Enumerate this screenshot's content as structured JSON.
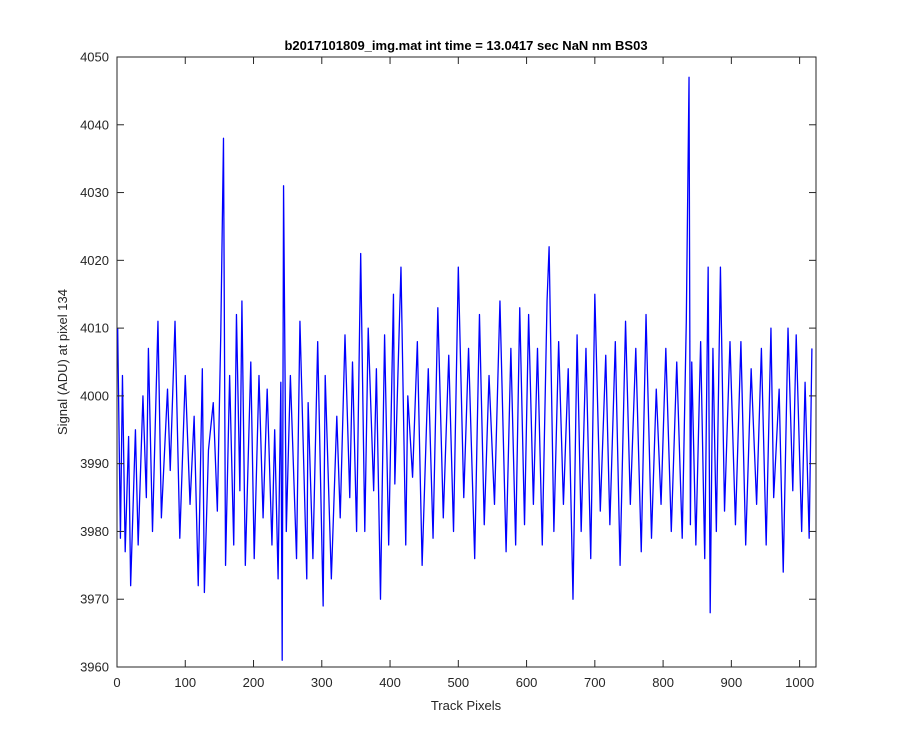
{
  "figure": {
    "background": "#ffffff",
    "axes_color": "#262626"
  },
  "chart_data": {
    "type": "line",
    "title": "b2017101809_img.mat int time = 13.0417 sec  NaN nm BS03",
    "xlabel": "Track Pixels",
    "ylabel": "Signal (ADU) at pixel 134",
    "xlim": [
      0,
      1024
    ],
    "ylim": [
      3960,
      4050
    ],
    "xticks": [
      0,
      100,
      200,
      300,
      400,
      500,
      600,
      700,
      800,
      900,
      1000
    ],
    "yticks": [
      3960,
      3970,
      3980,
      3990,
      4000,
      4010,
      4020,
      4030,
      4040,
      4050
    ],
    "grid": false,
    "legend": "none",
    "series": [
      {
        "color": "#0000ff",
        "sample_x": [
          1,
          5,
          8,
          12,
          17,
          20,
          27,
          31,
          38,
          43,
          46,
          52,
          60,
          65,
          74,
          78,
          85,
          92,
          100,
          107,
          113,
          119,
          125,
          128,
          134,
          141,
          147,
          152,
          156,
          159,
          165,
          171,
          175,
          180,
          183,
          188,
          196,
          201,
          208,
          214,
          220,
          227,
          231,
          236,
          240,
          242,
          244,
          248,
          254,
          263,
          268,
          278,
          280,
          287,
          294,
          302,
          305,
          314,
          322,
          327,
          334,
          341,
          345,
          351,
          357,
          363,
          368,
          376,
          380,
          386,
          392,
          398,
          405,
          407,
          416,
          423,
          426,
          433,
          440,
          447,
          456,
          463,
          470,
          478,
          486,
          493,
          500,
          508,
          515,
          524,
          531,
          538,
          545,
          553,
          561,
          570,
          577,
          584,
          590,
          597,
          603,
          610,
          616,
          623,
          630,
          633,
          640,
          647,
          654,
          661,
          668,
          674,
          680,
          687,
          694,
          700,
          708,
          716,
          722,
          730,
          737,
          745,
          752,
          760,
          768,
          775,
          783,
          790,
          797,
          804,
          812,
          820,
          828,
          834,
          838,
          840,
          842,
          848,
          855,
          861,
          866,
          869,
          873,
          878,
          884,
          890,
          898,
          906,
          914,
          921,
          929,
          937,
          944,
          951,
          958,
          962,
          970,
          976,
          983,
          990,
          995,
          1003,
          1008,
          1014,
          1018,
          1022
        ],
        "sample_y": [
          4010,
          3979,
          4003,
          3977,
          3994,
          3972,
          3995,
          3978,
          4000,
          3985,
          4007,
          3980,
          4011,
          3982,
          4001,
          3989,
          4011,
          3979,
          4003,
          3984,
          3997,
          3972,
          4004,
          3971,
          3992,
          3999,
          3983,
          4009,
          4038,
          3975,
          4003,
          3978,
          4012,
          3986,
          4014,
          3975,
          4005,
          3976,
          4003,
          3982,
          4001,
          3978,
          3995,
          3973,
          4002,
          3961,
          4031,
          3980,
          4003,
          3976,
          4011,
          3973,
          3999,
          3976,
          4008,
          3969,
          4003,
          3973,
          3997,
          3982,
          4009,
          3985,
          4005,
          3980,
          4021,
          3980,
          4010,
          3986,
          4004,
          3970,
          4009,
          3978,
          4015,
          3987,
          4019,
          3978,
          4000,
          3988,
          4008,
          3975,
          4004,
          3979,
          4013,
          3982,
          4006,
          3980,
          4019,
          3985,
          4007,
          3976,
          4012,
          3981,
          4003,
          3984,
          4014,
          3977,
          4007,
          3978,
          4013,
          3981,
          4012,
          3984,
          4007,
          3978,
          4014,
          4022,
          3980,
          4008,
          3984,
          4004,
          3970,
          4009,
          3980,
          4007,
          3976,
          4015,
          3983,
          4006,
          3981,
          4008,
          3975,
          4011,
          3984,
          4007,
          3977,
          4012,
          3979,
          4001,
          3984,
          4007,
          3980,
          4005,
          3979,
          4011,
          4047,
          3981,
          4005,
          3978,
          4008,
          3976,
          4019,
          3968,
          4007,
          3980,
          4019,
          3983,
          4008,
          3981,
          4008,
          3978,
          4004,
          3984,
          4007,
          3978,
          4010,
          3985,
          4001,
          3974,
          4010,
          3986,
          4009,
          3980,
          4002,
          3979,
          4007
        ]
      }
    ]
  }
}
